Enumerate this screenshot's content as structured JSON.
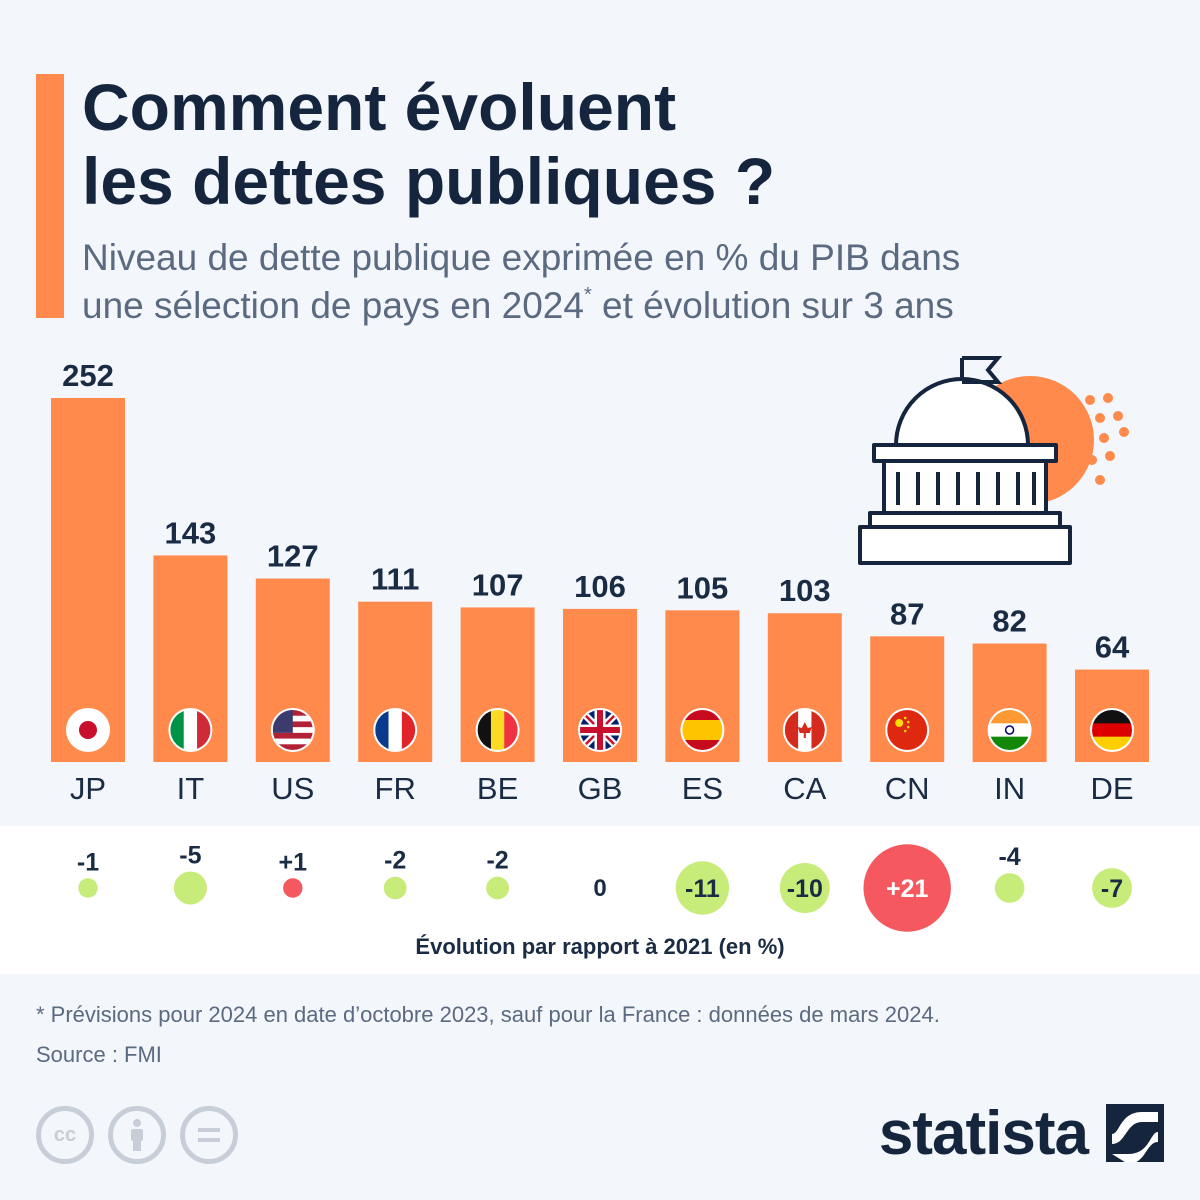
{
  "header": {
    "title_line1": "Comment évoluent",
    "title_line2": "les dettes publiques ?",
    "subtitle_line1": "Niveau de dette publique exprimée en % du PIB dans",
    "subtitle_line2_a": "une sélection de pays en 2024",
    "subtitle_sup": "*",
    "subtitle_line2_b": " et évolution sur 3 ans"
  },
  "chart_data": {
    "type": "bar",
    "categories": [
      "JP",
      "IT",
      "US",
      "FR",
      "BE",
      "GB",
      "ES",
      "CA",
      "CN",
      "IN",
      "DE"
    ],
    "values": [
      252,
      143,
      127,
      111,
      107,
      106,
      105,
      103,
      87,
      82,
      64
    ],
    "evolution_labels": [
      "-1",
      "-5",
      "+1",
      "-2",
      "-2",
      "0",
      "-11",
      "-10",
      "+21",
      "-4",
      "-7"
    ],
    "evolution_values": [
      -1,
      -5,
      1,
      -2,
      -2,
      0,
      -11,
      -10,
      21,
      -4,
      -7
    ],
    "evolution_title": "Évolution par rapport à 2021 (en %)",
    "flag_icons": [
      "japan-flag-icon",
      "italy-flag-icon",
      "usa-flag-icon",
      "france-flag-icon",
      "belgium-flag-icon",
      "uk-flag-icon",
      "spain-flag-icon",
      "canada-flag-icon",
      "china-flag-icon",
      "india-flag-icon",
      "germany-flag-icon"
    ],
    "ylim": [
      0,
      252
    ],
    "grid": false,
    "colors": {
      "bar": "#ff8a4c",
      "decrease": "#c8ec7a",
      "increase": "#f5595f",
      "text": "#1a2b44"
    }
  },
  "footer": {
    "footnote": "* Prévisions pour 2024 en date d’octobre 2023, sauf pour la France : données de mars 2024.",
    "source": "Source : FMI",
    "brand": "statista",
    "cc_icons": [
      "cc-icon",
      "attribution-icon",
      "no-derivatives-icon"
    ]
  }
}
